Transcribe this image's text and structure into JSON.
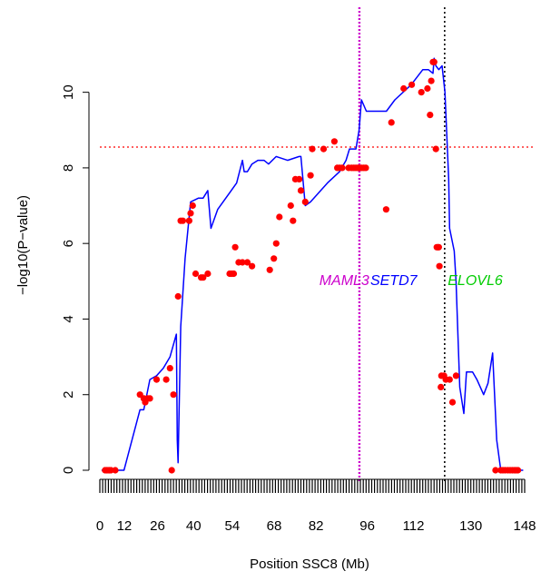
{
  "chart_data": {
    "type": "scatter",
    "title": "",
    "xlabel": "Position SSC8 (Mb)",
    "ylabel": "−log10(P−value)",
    "xlim": [
      4,
      150
    ],
    "ylim": [
      0,
      11
    ],
    "x_tick_labels": [
      "0",
      "12",
      "26",
      "40",
      "54",
      "68",
      "82",
      "96",
      "112",
      "130",
      "148"
    ],
    "x_tick_values": [
      4,
      12.4,
      23.8,
      36.2,
      49.5,
      63.9,
      78.3,
      95.9,
      111.8,
      131.5,
      150
    ],
    "y_ticks": [
      0,
      2,
      4,
      6,
      8,
      10
    ],
    "colors": {
      "line": "#0000ff",
      "points": "#ff0000",
      "threshold": "#ff0000",
      "vline_maml3": "#cc00cc",
      "vline_elovl6": "#000000",
      "axis": "#000000"
    },
    "threshold": 8.55,
    "vlines": [
      {
        "x": 93.2,
        "style": "dotted",
        "color": "#cc00cc"
      },
      {
        "x": 122.5,
        "style": "dotted",
        "color": "#000000"
      }
    ],
    "gene_labels": [
      {
        "text": "MAML3",
        "x": 88,
        "y": 4.9,
        "color": "#cc00cc"
      },
      {
        "text": "SETD7",
        "x": 105,
        "y": 4.9,
        "color": "#0000ff"
      },
      {
        "text": "ELOVL6",
        "x": 133,
        "y": 4.9,
        "color": "#00cc00"
      }
    ],
    "line": {
      "x": [
        5.8,
        6.8,
        9.3,
        12.3,
        17.8,
        19.6,
        21.7,
        26.2,
        28.1,
        30.3,
        30.9,
        31.8,
        33.3,
        35.2,
        37.9,
        39.5,
        41.1,
        42.2,
        44.5,
        51.0,
        53.0,
        53.6,
        54.7,
        56.3,
        60.4,
        62.0,
        64.6,
        68.5,
        72.5,
        73.1,
        74.6,
        76.4,
        82.2,
        86.4,
        88.6,
        89.8,
        91.3,
        92.0,
        93.1,
        93.9,
        95.6,
        102.5,
        116.9,
        118.5,
        118.9,
        119.5,
        120.5,
        121.6,
        122.6,
        125.8,
        126.4,
        127.7,
        129.1,
        132.1,
        133.6,
        135.9,
        137.4,
        139.0,
        141.8,
        142.5,
        146.5,
        149.5
      ],
      "y": [
        0.0,
        0.0,
        0.0,
        0.0,
        1.6,
        1.6,
        2.4,
        2.7,
        3.0,
        3.6,
        0.2,
        3.8,
        5.6,
        7.1,
        7.2,
        7.2,
        7.4,
        6.4,
        6.9,
        7.6,
        8.2,
        7.9,
        7.9,
        8.1,
        8.2,
        8.1,
        8.3,
        8.2,
        8.3,
        8.3,
        7.0,
        7.1,
        7.6,
        7.9,
        8.2,
        8.5,
        8.5,
        8.5,
        9.0,
        9.8,
        9.5,
        9.5,
        10.6,
        10.5,
        10.9,
        10.7,
        10.6,
        10.7,
        10.0,
        5.8,
        5.0,
        2.2,
        1.5,
        2.6,
        2.4,
        2.0,
        2.3,
        3.1,
        0.0,
        0.0,
        0.0,
        0.0
      ],
      "path": [
        [
          4.6,
          0.0
        ],
        [
          10.0,
          0.0
        ],
        [
          11.8,
          0.0
        ],
        [
          12.3,
          0.0
        ],
        [
          17.8,
          1.6
        ],
        [
          19.1,
          1.6
        ],
        [
          21.2,
          2.4
        ],
        [
          23.5,
          2.5
        ],
        [
          25.8,
          2.7
        ],
        [
          28.1,
          3.0
        ],
        [
          30.3,
          3.6
        ],
        [
          30.6,
          0.8
        ],
        [
          30.9,
          0.2
        ],
        [
          31.8,
          3.8
        ],
        [
          33.3,
          5.6
        ],
        [
          35.2,
          7.1
        ],
        [
          37.9,
          7.2
        ],
        [
          39.5,
          7.2
        ],
        [
          41.1,
          7.4
        ],
        [
          42.2,
          6.4
        ],
        [
          44.5,
          6.9
        ],
        [
          51.0,
          7.6
        ],
        [
          53.0,
          8.2
        ],
        [
          53.6,
          7.9
        ],
        [
          54.7,
          7.9
        ],
        [
          56.3,
          8.1
        ],
        [
          58.3,
          8.2
        ],
        [
          60.4,
          8.2
        ],
        [
          62.0,
          8.1
        ],
        [
          64.6,
          8.3
        ],
        [
          68.5,
          8.2
        ],
        [
          72.5,
          8.3
        ],
        [
          73.1,
          8.3
        ],
        [
          74.6,
          7.0
        ],
        [
          76.4,
          7.1
        ],
        [
          82.2,
          7.6
        ],
        [
          86.4,
          7.9
        ],
        [
          88.6,
          8.2
        ],
        [
          89.8,
          8.5
        ],
        [
          91.3,
          8.5
        ],
        [
          92.0,
          8.5
        ],
        [
          93.1,
          9.0
        ],
        [
          93.9,
          9.8
        ],
        [
          95.6,
          9.5
        ],
        [
          102.5,
          9.5
        ],
        [
          105.4,
          9.8
        ],
        [
          111.0,
          10.2
        ],
        [
          115.0,
          10.6
        ],
        [
          116.9,
          10.6
        ],
        [
          118.5,
          10.5
        ],
        [
          118.9,
          10.9
        ],
        [
          119.5,
          10.7
        ],
        [
          120.5,
          10.6
        ],
        [
          121.6,
          10.7
        ],
        [
          122.6,
          10.0
        ],
        [
          123.9,
          7.7
        ],
        [
          124.2,
          6.4
        ],
        [
          125.8,
          5.8
        ],
        [
          126.4,
          5.0
        ],
        [
          127.7,
          2.2
        ],
        [
          129.1,
          1.5
        ],
        [
          130.0,
          2.6
        ],
        [
          132.1,
          2.6
        ],
        [
          133.6,
          2.4
        ],
        [
          135.9,
          2.0
        ],
        [
          137.4,
          2.3
        ],
        [
          139.0,
          3.1
        ],
        [
          140.4,
          0.8
        ],
        [
          141.8,
          0.0
        ],
        [
          142.5,
          0.0
        ],
        [
          146.5,
          0.0
        ],
        [
          149.5,
          0.0
        ]
      ]
    },
    "points": {
      "x": [
        5.8,
        6.3,
        6.8,
        7.3,
        7.8,
        9.3,
        12.3,
        17.8,
        19.1,
        19.6,
        20.4,
        21.2,
        23.5,
        26.8,
        28.1,
        28.7,
        29.3,
        30.9,
        31.8,
        32.5,
        34.7,
        35.2,
        35.9,
        36.9,
        38.8,
        39.5,
        41.1,
        48.6,
        49.4,
        50.0,
        50.5,
        51.7,
        53.0,
        54.7,
        56.3,
        62.4,
        63.8,
        64.6,
        65.7,
        69.6,
        70.4,
        71.2,
        72.5,
        73.1,
        74.6,
        76.4,
        77.0,
        80.9,
        84.6,
        85.6,
        86.4,
        87.3,
        89.5,
        90.5,
        91.3,
        92.0,
        92.7,
        93.1,
        93.9,
        94.7,
        95.4,
        96.2,
        96.9,
        97.6,
        98.4,
        99.2,
        100.0,
        100.8,
        102.4,
        104.2,
        108.4,
        111.2,
        114.5,
        116.6,
        117.5,
        117.9,
        118.5,
        118.9,
        119.5,
        119.8,
        120.2,
        120.5,
        120.7,
        120.9,
        121.2,
        121.4,
        122.3,
        122.9,
        124.2,
        125.2,
        126.4,
        128.6,
        130.0,
        131.2,
        131.9,
        132.3,
        135.9,
        137.4,
        140.0,
        141.8,
        142.5,
        143.3,
        144.2,
        145.0,
        145.8,
        146.5,
        147.0,
        147.7
      ],
      "y": [
        0.0,
        0.0,
        0.0,
        0.0,
        0.0,
        0.0,
        0.0,
        2.0,
        1.9,
        1.8,
        1.9,
        1.9,
        2.4,
        2.4,
        2.7,
        0.0,
        2.0,
        4.6,
        6.6,
        6.6,
        6.6,
        6.8,
        7.0,
        5.2,
        5.1,
        5.1,
        5.2,
        5.2,
        5.2,
        5.9,
        5.5,
        5.5,
        5.5,
        5.4,
        5.3,
        5.6,
        6.0,
        6.7,
        7.0,
        6.6,
        7.7,
        7.7,
        7.4,
        7.1,
        7.8,
        8.5,
        8.5,
        8.7,
        8.0,
        8.0,
        8.0,
        8.0,
        8.0,
        8.0,
        8.0,
        8.0,
        8.0,
        8.0,
        8.0,
        6.9,
        9.2,
        10.1,
        10.2,
        10.0,
        10.1,
        9.4,
        10.3,
        10.8,
        10.8,
        8.5,
        5.9,
        5.9,
        5.9,
        5.4,
        2.2,
        2.5,
        2.5,
        2.4,
        2.4,
        1.8,
        2.5,
        0.0,
        0.0,
        0.0,
        0.0,
        0.0,
        0.0,
        0.0,
        0.0,
        0.0,
        0.0,
        0.0,
        0.0,
        0.0,
        0.0,
        0.0,
        0.0,
        0.0,
        0.0,
        0.0,
        0.0,
        0.0,
        0.0,
        0.0,
        0.0,
        0.0,
        0.0,
        0.0
      ],
      "pairs": [
        [
          5.8,
          0.0
        ],
        [
          6.3,
          0.0
        ],
        [
          6.8,
          0.0
        ],
        [
          7.3,
          0.0
        ],
        [
          7.8,
          0.0
        ],
        [
          9.3,
          0.0
        ],
        [
          17.8,
          2.0
        ],
        [
          19.1,
          1.9
        ],
        [
          19.6,
          1.8
        ],
        [
          20.4,
          1.9
        ],
        [
          21.2,
          1.9
        ],
        [
          23.5,
          2.4
        ],
        [
          26.8,
          2.4
        ],
        [
          28.1,
          2.7
        ],
        [
          28.7,
          0.0
        ],
        [
          29.3,
          2.0
        ],
        [
          30.9,
          4.6
        ],
        [
          31.8,
          6.6
        ],
        [
          32.5,
          6.6
        ],
        [
          34.7,
          6.6
        ],
        [
          35.2,
          6.8
        ],
        [
          35.9,
          7.0
        ],
        [
          36.9,
          5.2
        ],
        [
          38.8,
          5.1
        ],
        [
          39.5,
          5.1
        ],
        [
          41.1,
          5.2
        ],
        [
          48.6,
          5.2
        ],
        [
          49.4,
          5.2
        ],
        [
          50.0,
          5.2
        ],
        [
          50.5,
          5.9
        ],
        [
          51.7,
          5.5
        ],
        [
          53.0,
          5.5
        ],
        [
          54.7,
          5.5
        ],
        [
          56.3,
          5.4
        ],
        [
          62.4,
          5.3
        ],
        [
          63.8,
          5.6
        ],
        [
          64.6,
          6.0
        ],
        [
          65.7,
          6.7
        ],
        [
          69.6,
          7.0
        ],
        [
          70.4,
          6.6
        ],
        [
          71.2,
          7.7
        ],
        [
          72.5,
          7.7
        ],
        [
          73.1,
          7.4
        ],
        [
          74.6,
          7.1
        ],
        [
          76.4,
          7.8
        ],
        [
          77.0,
          8.5
        ],
        [
          80.9,
          8.5
        ],
        [
          84.6,
          8.7
        ],
        [
          85.6,
          8.0
        ],
        [
          86.4,
          8.0
        ],
        [
          87.3,
          8.0
        ],
        [
          89.5,
          8.0
        ],
        [
          90.5,
          8.0
        ],
        [
          91.3,
          8.0
        ],
        [
          92.0,
          8.0
        ],
        [
          92.7,
          8.0
        ],
        [
          93.1,
          8.0
        ],
        [
          93.9,
          8.0
        ],
        [
          94.7,
          8.0
        ],
        [
          95.4,
          8.0
        ],
        [
          102.4,
          6.9
        ],
        [
          104.2,
          9.2
        ],
        [
          108.4,
          10.1
        ],
        [
          111.2,
          10.2
        ],
        [
          114.5,
          10.0
        ],
        [
          116.6,
          10.1
        ],
        [
          117.5,
          9.4
        ],
        [
          117.9,
          10.3
        ],
        [
          118.5,
          10.8
        ],
        [
          118.9,
          10.8
        ],
        [
          119.5,
          8.5
        ],
        [
          119.8,
          5.9
        ],
        [
          120.2,
          5.9
        ],
        [
          120.5,
          5.9
        ],
        [
          120.7,
          5.4
        ],
        [
          121.2,
          2.2
        ],
        [
          121.4,
          2.5
        ],
        [
          122.3,
          2.5
        ],
        [
          122.9,
          2.4
        ],
        [
          124.2,
          2.4
        ],
        [
          125.2,
          1.8
        ],
        [
          126.4,
          2.5
        ],
        [
          140.0,
          0.0
        ],
        [
          141.8,
          0.0
        ],
        [
          142.5,
          0.0
        ],
        [
          143.3,
          0.0
        ],
        [
          144.2,
          0.0
        ],
        [
          145.0,
          0.0
        ],
        [
          145.8,
          0.0
        ],
        [
          146.5,
          0.0
        ],
        [
          147.0,
          0.0
        ],
        [
          147.7,
          0.0
        ]
      ]
    }
  }
}
